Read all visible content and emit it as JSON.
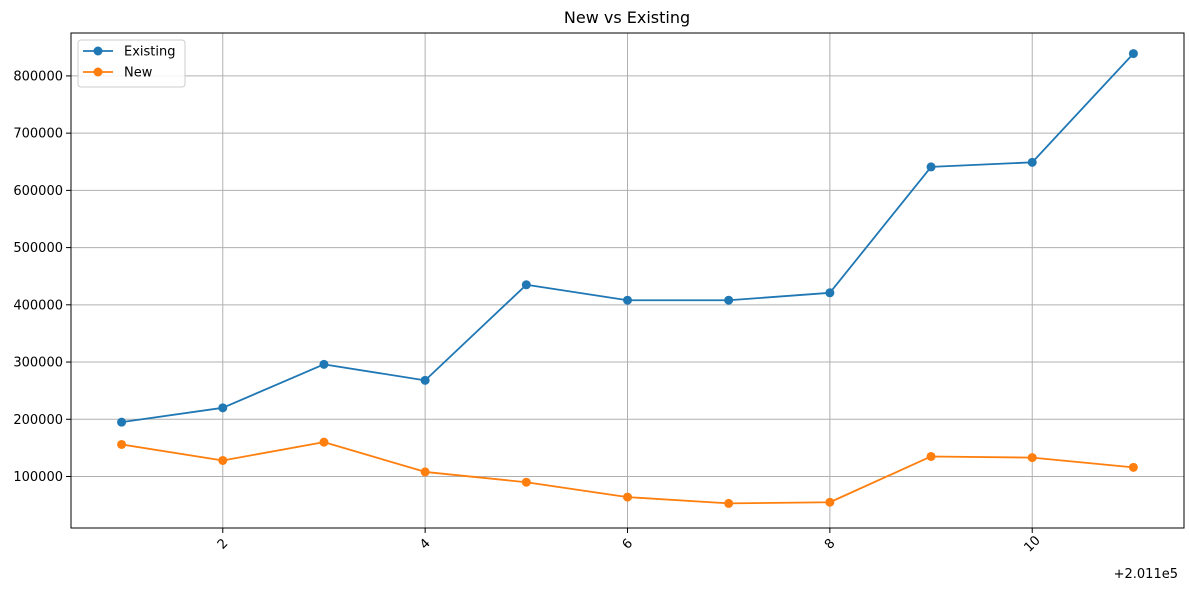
{
  "chart_data": {
    "type": "line",
    "title": "New vs Existing",
    "xlabel": "",
    "ylabel": "",
    "x": [
      1,
      2,
      3,
      4,
      5,
      6,
      7,
      8,
      9,
      10,
      11
    ],
    "x_offset_label": "+2.011e5",
    "xticks": [
      2,
      4,
      6,
      8,
      10
    ],
    "xtick_labels": [
      "2",
      "4",
      "6",
      "8",
      "10"
    ],
    "xlim": [
      0.5,
      11.5
    ],
    "yticks": [
      100000,
      200000,
      300000,
      400000,
      500000,
      600000,
      700000,
      800000
    ],
    "ytick_labels": [
      "100000",
      "200000",
      "300000",
      "400000",
      "500000",
      "600000",
      "700000",
      "800000"
    ],
    "ylim": [
      10000,
      875000
    ],
    "grid": true,
    "legend_position": "top-left",
    "series": [
      {
        "name": "Existing",
        "color": "#1f77b4",
        "values": [
          195000,
          220000,
          296000,
          268000,
          435000,
          408000,
          408000,
          421000,
          641000,
          649000,
          839000
        ]
      },
      {
        "name": "New",
        "color": "#ff7f0e",
        "values": [
          156000,
          128000,
          160000,
          108000,
          90000,
          64000,
          53000,
          55000,
          135000,
          133000,
          116000
        ]
      }
    ]
  }
}
